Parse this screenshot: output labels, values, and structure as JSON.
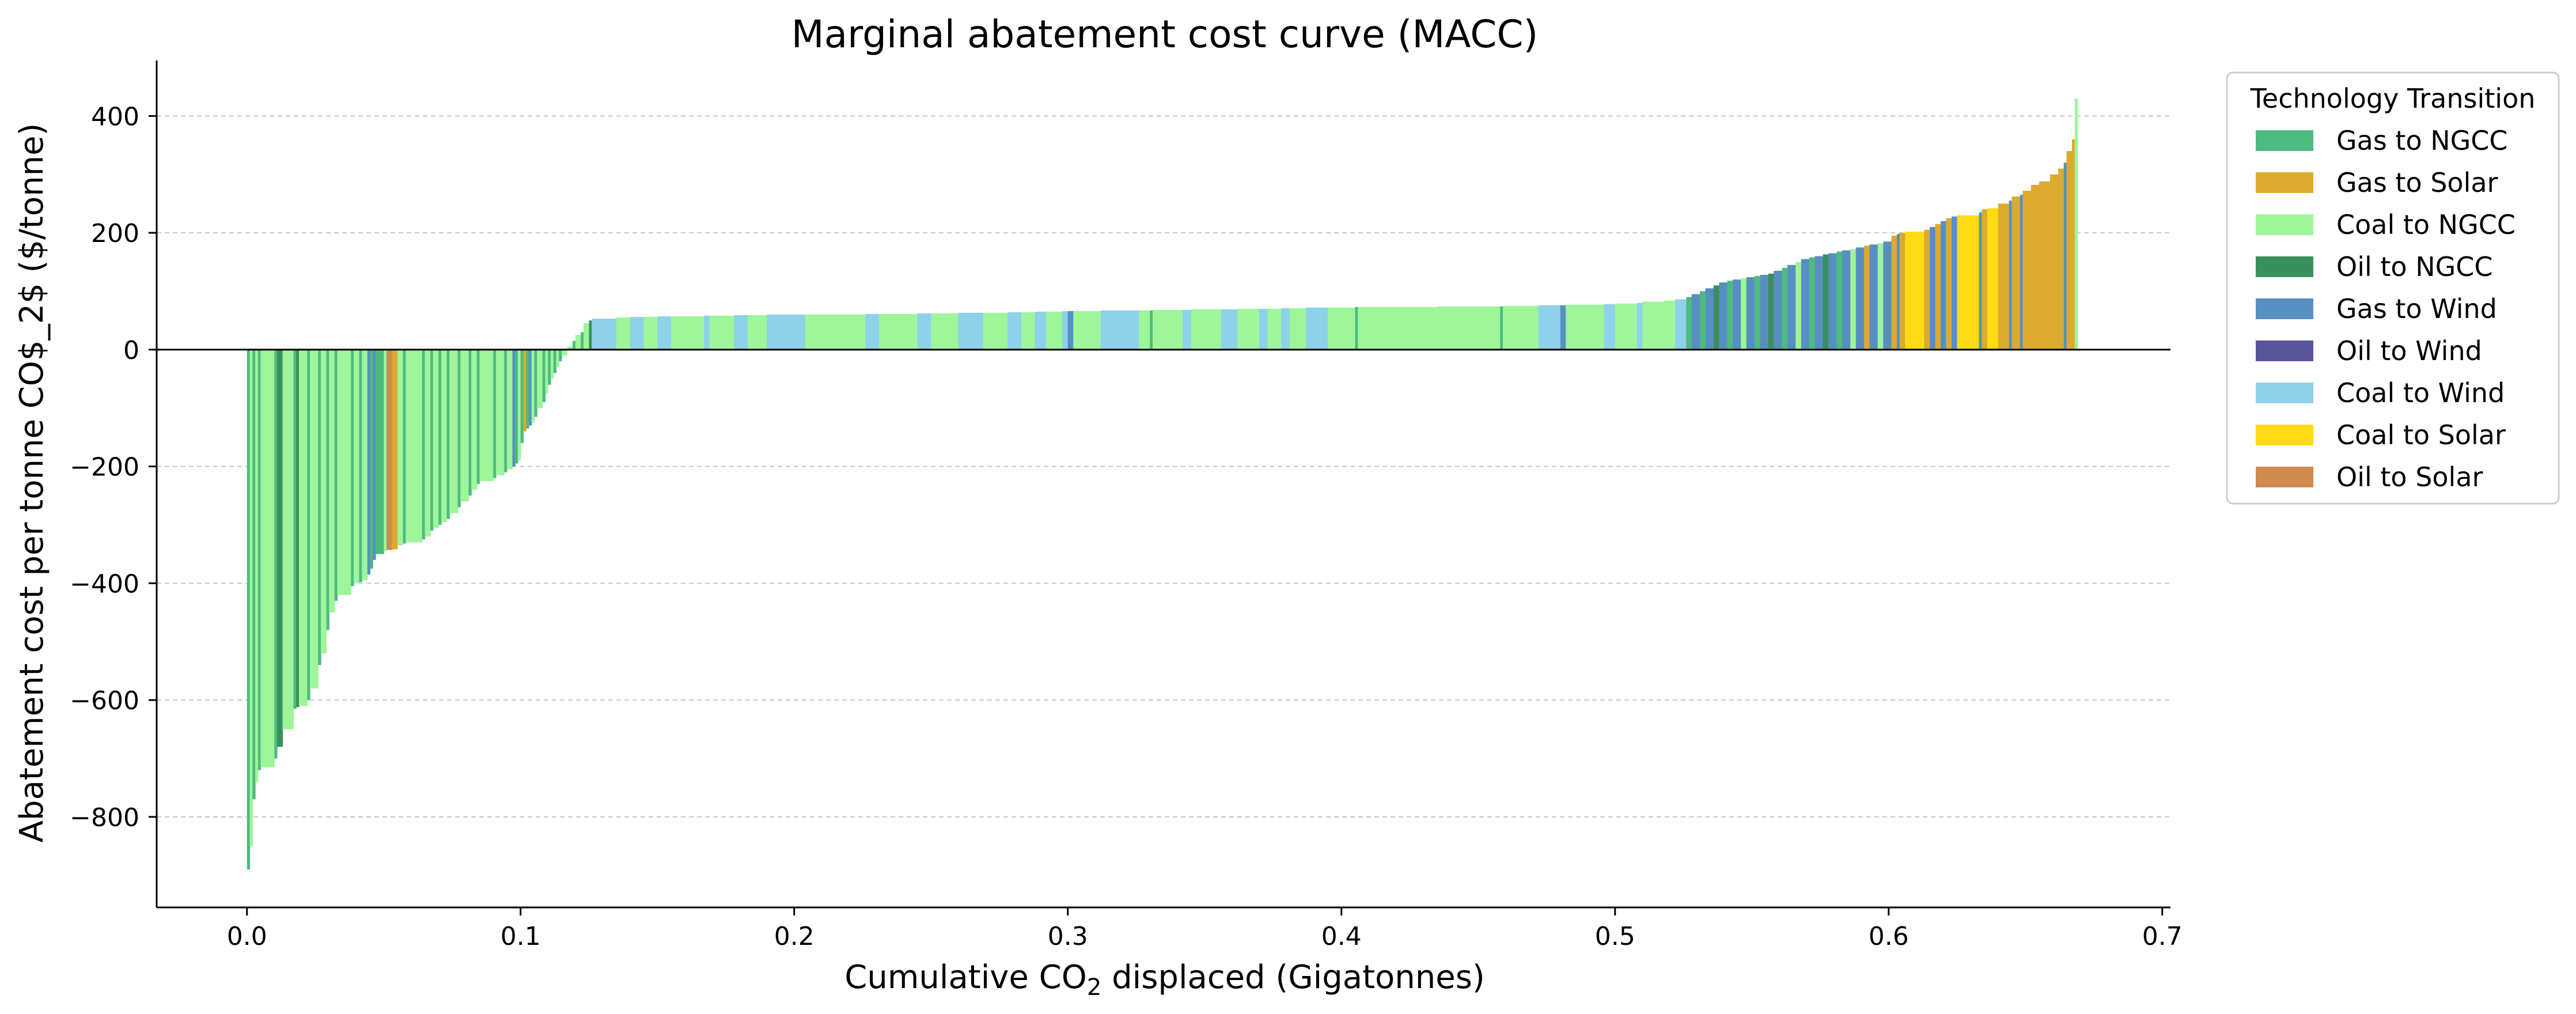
{
  "chart_data": {
    "type": "bar",
    "subtype": "variable-width marginal abatement cost curve",
    "title": "Marginal abatement cost curve (MACC)",
    "xlabel_main": "Cumulative CO",
    "xlabel_sub": "2",
    "xlabel_rest": " displaced (Gigatonnes)",
    "ylabel": "Abatement cost per tonne CO$_2$ ($/tonne)",
    "xlim": [
      -0.033,
      0.703
    ],
    "ylim": [
      -955,
      495
    ],
    "xticks": [
      0.0,
      0.1,
      0.2,
      0.3,
      0.4,
      0.5,
      0.6,
      0.7
    ],
    "xtick_labels": [
      "0.0",
      "0.1",
      "0.2",
      "0.3",
      "0.4",
      "0.5",
      "0.6",
      "0.7"
    ],
    "yticks": [
      -800,
      -600,
      -400,
      -200,
      0,
      200,
      400
    ],
    "ytick_labels": [
      "−800",
      "−600",
      "−400",
      "−200",
      "0",
      "200",
      "400"
    ],
    "grid": "y dashed",
    "legend_title": "Technology Transition",
    "legend_position": "outside right",
    "series": [
      {
        "name": "Gas to NGCC",
        "color": "#4dbb7e"
      },
      {
        "name": "Gas to Solar",
        "color": "#dcaa30"
      },
      {
        "name": "Coal to NGCC",
        "color": "#9ef59a"
      },
      {
        "name": "Oil to NGCC",
        "color": "#3a8f5e"
      },
      {
        "name": "Gas to Wind",
        "color": "#5790c0"
      },
      {
        "name": "Oil to Wind",
        "color": "#5a559a"
      },
      {
        "name": "Coal to Wind",
        "color": "#8fd0eb"
      },
      {
        "name": "Coal to Solar",
        "color": "#fedb14"
      },
      {
        "name": "Oil to Solar",
        "color": "#cd8b4f"
      }
    ],
    "bars": [
      {
        "x0": 0.0,
        "x1": 0.001,
        "y": -890,
        "s": 0
      },
      {
        "x0": 0.001,
        "x1": 0.002,
        "y": -850,
        "s": 2
      },
      {
        "x0": 0.002,
        "x1": 0.003,
        "y": -770,
        "s": 0
      },
      {
        "x0": 0.003,
        "x1": 0.004,
        "y": -740,
        "s": 2
      },
      {
        "x0": 0.004,
        "x1": 0.005,
        "y": -720,
        "s": 0
      },
      {
        "x0": 0.005,
        "x1": 0.01,
        "y": -715,
        "s": 2
      },
      {
        "x0": 0.01,
        "x1": 0.011,
        "y": -700,
        "s": 0
      },
      {
        "x0": 0.011,
        "x1": 0.013,
        "y": -680,
        "s": 3
      },
      {
        "x0": 0.013,
        "x1": 0.017,
        "y": -650,
        "s": 2
      },
      {
        "x0": 0.017,
        "x1": 0.018,
        "y": -615,
        "s": 0
      },
      {
        "x0": 0.018,
        "x1": 0.019,
        "y": -612,
        "s": 3
      },
      {
        "x0": 0.019,
        "x1": 0.022,
        "y": -610,
        "s": 2
      },
      {
        "x0": 0.022,
        "x1": 0.023,
        "y": -600,
        "s": 0
      },
      {
        "x0": 0.023,
        "x1": 0.026,
        "y": -580,
        "s": 2
      },
      {
        "x0": 0.026,
        "x1": 0.027,
        "y": -540,
        "s": 0
      },
      {
        "x0": 0.027,
        "x1": 0.029,
        "y": -520,
        "s": 2
      },
      {
        "x0": 0.029,
        "x1": 0.03,
        "y": -480,
        "s": 0
      },
      {
        "x0": 0.03,
        "x1": 0.032,
        "y": -450,
        "s": 2
      },
      {
        "x0": 0.032,
        "x1": 0.033,
        "y": -430,
        "s": 0
      },
      {
        "x0": 0.033,
        "x1": 0.038,
        "y": -420,
        "s": 2
      },
      {
        "x0": 0.038,
        "x1": 0.039,
        "y": -405,
        "s": 0
      },
      {
        "x0": 0.039,
        "x1": 0.041,
        "y": -400,
        "s": 2
      },
      {
        "x0": 0.041,
        "x1": 0.042,
        "y": -398,
        "s": 0
      },
      {
        "x0": 0.042,
        "x1": 0.044,
        "y": -395,
        "s": 2
      },
      {
        "x0": 0.044,
        "x1": 0.045,
        "y": -385,
        "s": 4
      },
      {
        "x0": 0.045,
        "x1": 0.046,
        "y": -375,
        "s": 0
      },
      {
        "x0": 0.046,
        "x1": 0.047,
        "y": -360,
        "s": 4
      },
      {
        "x0": 0.047,
        "x1": 0.05,
        "y": -350,
        "s": 0
      },
      {
        "x0": 0.05,
        "x1": 0.051,
        "y": -345,
        "s": 2
      },
      {
        "x0": 0.051,
        "x1": 0.053,
        "y": -343,
        "s": 8
      },
      {
        "x0": 0.053,
        "x1": 0.055,
        "y": -342,
        "s": 1
      },
      {
        "x0": 0.055,
        "x1": 0.057,
        "y": -335,
        "s": 2
      },
      {
        "x0": 0.057,
        "x1": 0.058,
        "y": -332,
        "s": 0
      },
      {
        "x0": 0.058,
        "x1": 0.064,
        "y": -330,
        "s": 2
      },
      {
        "x0": 0.064,
        "x1": 0.065,
        "y": -325,
        "s": 0
      },
      {
        "x0": 0.065,
        "x1": 0.067,
        "y": -320,
        "s": 2
      },
      {
        "x0": 0.067,
        "x1": 0.068,
        "y": -310,
        "s": 0
      },
      {
        "x0": 0.068,
        "x1": 0.07,
        "y": -305,
        "s": 2
      },
      {
        "x0": 0.07,
        "x1": 0.071,
        "y": -300,
        "s": 0
      },
      {
        "x0": 0.071,
        "x1": 0.073,
        "y": -295,
        "s": 2
      },
      {
        "x0": 0.073,
        "x1": 0.074,
        "y": -290,
        "s": 0
      },
      {
        "x0": 0.074,
        "x1": 0.077,
        "y": -280,
        "s": 2
      },
      {
        "x0": 0.077,
        "x1": 0.078,
        "y": -270,
        "s": 0
      },
      {
        "x0": 0.078,
        "x1": 0.081,
        "y": -260,
        "s": 2
      },
      {
        "x0": 0.081,
        "x1": 0.082,
        "y": -250,
        "s": 0
      },
      {
        "x0": 0.082,
        "x1": 0.084,
        "y": -240,
        "s": 2
      },
      {
        "x0": 0.084,
        "x1": 0.085,
        "y": -230,
        "s": 0
      },
      {
        "x0": 0.085,
        "x1": 0.09,
        "y": -225,
        "s": 2
      },
      {
        "x0": 0.09,
        "x1": 0.091,
        "y": -220,
        "s": 0
      },
      {
        "x0": 0.091,
        "x1": 0.094,
        "y": -215,
        "s": 2
      },
      {
        "x0": 0.094,
        "x1": 0.095,
        "y": -210,
        "s": 0
      },
      {
        "x0": 0.095,
        "x1": 0.097,
        "y": -205,
        "s": 2
      },
      {
        "x0": 0.097,
        "x1": 0.098,
        "y": -200,
        "s": 4
      },
      {
        "x0": 0.098,
        "x1": 0.099,
        "y": -195,
        "s": 0
      },
      {
        "x0": 0.099,
        "x1": 0.1,
        "y": -190,
        "s": 2
      },
      {
        "x0": 0.1,
        "x1": 0.101,
        "y": -160,
        "s": 0
      },
      {
        "x0": 0.101,
        "x1": 0.102,
        "y": -140,
        "s": 1
      },
      {
        "x0": 0.102,
        "x1": 0.103,
        "y": -135,
        "s": 0
      },
      {
        "x0": 0.103,
        "x1": 0.104,
        "y": -130,
        "s": 4
      },
      {
        "x0": 0.104,
        "x1": 0.105,
        "y": -125,
        "s": 2
      },
      {
        "x0": 0.105,
        "x1": 0.106,
        "y": -115,
        "s": 0
      },
      {
        "x0": 0.106,
        "x1": 0.108,
        "y": -100,
        "s": 2
      },
      {
        "x0": 0.108,
        "x1": 0.109,
        "y": -90,
        "s": 0
      },
      {
        "x0": 0.109,
        "x1": 0.11,
        "y": -75,
        "s": 2
      },
      {
        "x0": 0.11,
        "x1": 0.111,
        "y": -60,
        "s": 0
      },
      {
        "x0": 0.111,
        "x1": 0.112,
        "y": -50,
        "s": 2
      },
      {
        "x0": 0.112,
        "x1": 0.113,
        "y": -40,
        "s": 0
      },
      {
        "x0": 0.113,
        "x1": 0.114,
        "y": -30,
        "s": 2
      },
      {
        "x0": 0.114,
        "x1": 0.115,
        "y": -20,
        "s": 0
      },
      {
        "x0": 0.115,
        "x1": 0.117,
        "y": -10,
        "s": 2
      },
      {
        "x0": 0.117,
        "x1": 0.119,
        "y": 5,
        "s": 2
      },
      {
        "x0": 0.119,
        "x1": 0.12,
        "y": 15,
        "s": 0
      },
      {
        "x0": 0.12,
        "x1": 0.122,
        "y": 25,
        "s": 2
      },
      {
        "x0": 0.122,
        "x1": 0.123,
        "y": 30,
        "s": 0
      },
      {
        "x0": 0.123,
        "x1": 0.125,
        "y": 45,
        "s": 2
      },
      {
        "x0": 0.125,
        "x1": 0.126,
        "y": 50,
        "s": 3
      },
      {
        "x0": 0.126,
        "x1": 0.135,
        "y": 53,
        "s": 6
      },
      {
        "x0": 0.135,
        "x1": 0.14,
        "y": 55,
        "s": 2
      },
      {
        "x0": 0.14,
        "x1": 0.145,
        "y": 56,
        "s": 6
      },
      {
        "x0": 0.145,
        "x1": 0.15,
        "y": 56,
        "s": 2
      },
      {
        "x0": 0.15,
        "x1": 0.155,
        "y": 57,
        "s": 6
      },
      {
        "x0": 0.155,
        "x1": 0.167,
        "y": 57,
        "s": 2
      },
      {
        "x0": 0.167,
        "x1": 0.169,
        "y": 58,
        "s": 6
      },
      {
        "x0": 0.169,
        "x1": 0.178,
        "y": 58,
        "s": 2
      },
      {
        "x0": 0.178,
        "x1": 0.183,
        "y": 59,
        "s": 6
      },
      {
        "x0": 0.183,
        "x1": 0.19,
        "y": 59,
        "s": 2
      },
      {
        "x0": 0.19,
        "x1": 0.204,
        "y": 60,
        "s": 6
      },
      {
        "x0": 0.204,
        "x1": 0.226,
        "y": 60,
        "s": 2
      },
      {
        "x0": 0.226,
        "x1": 0.231,
        "y": 61,
        "s": 6
      },
      {
        "x0": 0.231,
        "x1": 0.245,
        "y": 61,
        "s": 2
      },
      {
        "x0": 0.245,
        "x1": 0.25,
        "y": 62,
        "s": 6
      },
      {
        "x0": 0.25,
        "x1": 0.26,
        "y": 62,
        "s": 2
      },
      {
        "x0": 0.26,
        "x1": 0.269,
        "y": 63,
        "s": 6
      },
      {
        "x0": 0.269,
        "x1": 0.278,
        "y": 63,
        "s": 2
      },
      {
        "x0": 0.278,
        "x1": 0.283,
        "y": 64,
        "s": 6
      },
      {
        "x0": 0.283,
        "x1": 0.288,
        "y": 64,
        "s": 2
      },
      {
        "x0": 0.288,
        "x1": 0.292,
        "y": 65,
        "s": 6
      },
      {
        "x0": 0.292,
        "x1": 0.298,
        "y": 65,
        "s": 2
      },
      {
        "x0": 0.298,
        "x1": 0.3,
        "y": 66,
        "s": 6
      },
      {
        "x0": 0.3,
        "x1": 0.302,
        "y": 66,
        "s": 4
      },
      {
        "x0": 0.302,
        "x1": 0.312,
        "y": 66,
        "s": 2
      },
      {
        "x0": 0.312,
        "x1": 0.326,
        "y": 67,
        "s": 6
      },
      {
        "x0": 0.326,
        "x1": 0.33,
        "y": 67,
        "s": 2
      },
      {
        "x0": 0.33,
        "x1": 0.331,
        "y": 67,
        "s": 0
      },
      {
        "x0": 0.331,
        "x1": 0.342,
        "y": 68,
        "s": 2
      },
      {
        "x0": 0.342,
        "x1": 0.345,
        "y": 68,
        "s": 6
      },
      {
        "x0": 0.345,
        "x1": 0.356,
        "y": 69,
        "s": 2
      },
      {
        "x0": 0.356,
        "x1": 0.362,
        "y": 69,
        "s": 6
      },
      {
        "x0": 0.362,
        "x1": 0.37,
        "y": 70,
        "s": 2
      },
      {
        "x0": 0.37,
        "x1": 0.373,
        "y": 70,
        "s": 6
      },
      {
        "x0": 0.373,
        "x1": 0.378,
        "y": 70,
        "s": 2
      },
      {
        "x0": 0.378,
        "x1": 0.381,
        "y": 71,
        "s": 6
      },
      {
        "x0": 0.381,
        "x1": 0.387,
        "y": 71,
        "s": 2
      },
      {
        "x0": 0.387,
        "x1": 0.395,
        "y": 72,
        "s": 6
      },
      {
        "x0": 0.395,
        "x1": 0.405,
        "y": 72,
        "s": 2
      },
      {
        "x0": 0.405,
        "x1": 0.406,
        "y": 73,
        "s": 0
      },
      {
        "x0": 0.406,
        "x1": 0.435,
        "y": 73,
        "s": 2
      },
      {
        "x0": 0.435,
        "x1": 0.458,
        "y": 74,
        "s": 2
      },
      {
        "x0": 0.458,
        "x1": 0.459,
        "y": 74,
        "s": 0
      },
      {
        "x0": 0.459,
        "x1": 0.472,
        "y": 75,
        "s": 2
      },
      {
        "x0": 0.472,
        "x1": 0.48,
        "y": 76,
        "s": 6
      },
      {
        "x0": 0.48,
        "x1": 0.482,
        "y": 76,
        "s": 4
      },
      {
        "x0": 0.482,
        "x1": 0.496,
        "y": 77,
        "s": 2
      },
      {
        "x0": 0.496,
        "x1": 0.5,
        "y": 78,
        "s": 6
      },
      {
        "x0": 0.5,
        "x1": 0.508,
        "y": 79,
        "s": 2
      },
      {
        "x0": 0.508,
        "x1": 0.51,
        "y": 80,
        "s": 6
      },
      {
        "x0": 0.51,
        "x1": 0.518,
        "y": 82,
        "s": 2
      },
      {
        "x0": 0.518,
        "x1": 0.522,
        "y": 84,
        "s": 2
      },
      {
        "x0": 0.522,
        "x1": 0.526,
        "y": 86,
        "s": 6
      },
      {
        "x0": 0.526,
        "x1": 0.528,
        "y": 90,
        "s": 0
      },
      {
        "x0": 0.528,
        "x1": 0.531,
        "y": 95,
        "s": 4
      },
      {
        "x0": 0.531,
        "x1": 0.533,
        "y": 100,
        "s": 0
      },
      {
        "x0": 0.533,
        "x1": 0.536,
        "y": 105,
        "s": 4
      },
      {
        "x0": 0.536,
        "x1": 0.538,
        "y": 110,
        "s": 3
      },
      {
        "x0": 0.538,
        "x1": 0.541,
        "y": 115,
        "s": 4
      },
      {
        "x0": 0.541,
        "x1": 0.543,
        "y": 118,
        "s": 0
      },
      {
        "x0": 0.543,
        "x1": 0.546,
        "y": 120,
        "s": 4
      },
      {
        "x0": 0.546,
        "x1": 0.548,
        "y": 122,
        "s": 2
      },
      {
        "x0": 0.548,
        "x1": 0.551,
        "y": 124,
        "s": 4
      },
      {
        "x0": 0.551,
        "x1": 0.553,
        "y": 126,
        "s": 0
      },
      {
        "x0": 0.553,
        "x1": 0.556,
        "y": 128,
        "s": 4
      },
      {
        "x0": 0.556,
        "x1": 0.558,
        "y": 130,
        "s": 3
      },
      {
        "x0": 0.558,
        "x1": 0.561,
        "y": 135,
        "s": 4
      },
      {
        "x0": 0.561,
        "x1": 0.563,
        "y": 140,
        "s": 0
      },
      {
        "x0": 0.563,
        "x1": 0.566,
        "y": 145,
        "s": 4
      },
      {
        "x0": 0.566,
        "x1": 0.568,
        "y": 150,
        "s": 2
      },
      {
        "x0": 0.568,
        "x1": 0.571,
        "y": 155,
        "s": 4
      },
      {
        "x0": 0.571,
        "x1": 0.573,
        "y": 158,
        "s": 0
      },
      {
        "x0": 0.573,
        "x1": 0.576,
        "y": 160,
        "s": 4
      },
      {
        "x0": 0.576,
        "x1": 0.578,
        "y": 163,
        "s": 3
      },
      {
        "x0": 0.578,
        "x1": 0.581,
        "y": 165,
        "s": 4
      },
      {
        "x0": 0.581,
        "x1": 0.583,
        "y": 168,
        "s": 0
      },
      {
        "x0": 0.583,
        "x1": 0.586,
        "y": 170,
        "s": 4
      },
      {
        "x0": 0.586,
        "x1": 0.588,
        "y": 172,
        "s": 2
      },
      {
        "x0": 0.588,
        "x1": 0.591,
        "y": 175,
        "s": 4
      },
      {
        "x0": 0.591,
        "x1": 0.593,
        "y": 178,
        "s": 1
      },
      {
        "x0": 0.593,
        "x1": 0.596,
        "y": 180,
        "s": 4
      },
      {
        "x0": 0.596,
        "x1": 0.598,
        "y": 182,
        "s": 2
      },
      {
        "x0": 0.598,
        "x1": 0.601,
        "y": 185,
        "s": 4
      },
      {
        "x0": 0.601,
        "x1": 0.603,
        "y": 195,
        "s": 1
      },
      {
        "x0": 0.603,
        "x1": 0.604,
        "y": 198,
        "s": 4
      },
      {
        "x0": 0.604,
        "x1": 0.606,
        "y": 200,
        "s": 1
      },
      {
        "x0": 0.606,
        "x1": 0.613,
        "y": 202,
        "s": 7
      },
      {
        "x0": 0.613,
        "x1": 0.615,
        "y": 205,
        "s": 1
      },
      {
        "x0": 0.615,
        "x1": 0.617,
        "y": 210,
        "s": 4
      },
      {
        "x0": 0.617,
        "x1": 0.619,
        "y": 215,
        "s": 1
      },
      {
        "x0": 0.619,
        "x1": 0.621,
        "y": 220,
        "s": 4
      },
      {
        "x0": 0.621,
        "x1": 0.623,
        "y": 225,
        "s": 1
      },
      {
        "x0": 0.623,
        "x1": 0.625,
        "y": 228,
        "s": 4
      },
      {
        "x0": 0.625,
        "x1": 0.633,
        "y": 230,
        "s": 7
      },
      {
        "x0": 0.633,
        "x1": 0.634,
        "y": 235,
        "s": 4
      },
      {
        "x0": 0.634,
        "x1": 0.636,
        "y": 240,
        "s": 1
      },
      {
        "x0": 0.636,
        "x1": 0.64,
        "y": 242,
        "s": 7
      },
      {
        "x0": 0.64,
        "x1": 0.644,
        "y": 250,
        "s": 1
      },
      {
        "x0": 0.644,
        "x1": 0.645,
        "y": 255,
        "s": 4
      },
      {
        "x0": 0.645,
        "x1": 0.648,
        "y": 262,
        "s": 1
      },
      {
        "x0": 0.648,
        "x1": 0.649,
        "y": 265,
        "s": 4
      },
      {
        "x0": 0.649,
        "x1": 0.652,
        "y": 272,
        "s": 1
      },
      {
        "x0": 0.652,
        "x1": 0.655,
        "y": 282,
        "s": 1
      },
      {
        "x0": 0.655,
        "x1": 0.659,
        "y": 288,
        "s": 1
      },
      {
        "x0": 0.659,
        "x1": 0.662,
        "y": 300,
        "s": 1
      },
      {
        "x0": 0.662,
        "x1": 0.664,
        "y": 310,
        "s": 1
      },
      {
        "x0": 0.664,
        "x1": 0.665,
        "y": 320,
        "s": 4
      },
      {
        "x0": 0.665,
        "x1": 0.667,
        "y": 340,
        "s": 1
      },
      {
        "x0": 0.667,
        "x1": 0.668,
        "y": 360,
        "s": 1
      },
      {
        "x0": 0.668,
        "x1": 0.669,
        "y": 430,
        "s": 2
      }
    ]
  }
}
